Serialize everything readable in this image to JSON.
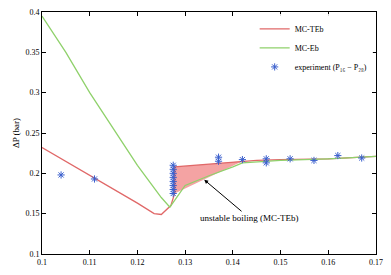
{
  "chart_data": {
    "type": "line",
    "ylabel": "ΔP (bar)",
    "xlim": [
      0.1,
      0.17
    ],
    "xticks": [
      0.1,
      0.11,
      0.12,
      0.13,
      0.14,
      0.15,
      0.16,
      0.17
    ],
    "ylim": [
      0.1,
      0.4
    ],
    "yticks": [
      0.1,
      0.15,
      0.2,
      0.25,
      0.3,
      0.35,
      0.4
    ],
    "grid": false,
    "legend": "upper right",
    "series": [
      {
        "name": "MC-TEb",
        "type": "line",
        "color": "#e06868",
        "line_style": "solid",
        "x": [
          0.1,
          0.105,
          0.11,
          0.115,
          0.12,
          0.1235,
          0.125,
          0.127,
          0.1278,
          0.1278,
          0.142,
          0.145,
          0.15,
          0.16,
          0.17
        ],
        "values": [
          0.232,
          0.215,
          0.198,
          0.18,
          0.163,
          0.15,
          0.149,
          0.16,
          0.175,
          0.208,
          0.215,
          0.216,
          0.217,
          0.218,
          0.221
        ]
      },
      {
        "name": "MC-Eb",
        "type": "line",
        "color": "#8fd16b",
        "line_style": "solid",
        "x": [
          0.1,
          0.105,
          0.11,
          0.115,
          0.12,
          0.125,
          0.1268,
          0.13,
          0.135,
          0.14,
          0.142,
          0.15,
          0.16,
          0.17
        ],
        "values": [
          0.395,
          0.35,
          0.3,
          0.255,
          0.21,
          0.17,
          0.158,
          0.185,
          0.197,
          0.208,
          0.213,
          0.216,
          0.218,
          0.221
        ]
      },
      {
        "name": "experiment (P₁₆ − P₂₈)",
        "type": "scatter",
        "color": "#3a5fcd",
        "marker": "asterisk",
        "x": [
          0.104,
          0.111,
          0.1275,
          0.1275,
          0.1275,
          0.1275,
          0.1275,
          0.1275,
          0.1275,
          0.1275,
          0.137,
          0.137,
          0.142,
          0.147,
          0.147,
          0.152,
          0.157,
          0.162,
          0.167
        ],
        "values": [
          0.198,
          0.193,
          0.175,
          0.18,
          0.185,
          0.19,
          0.195,
          0.2,
          0.205,
          0.21,
          0.215,
          0.22,
          0.217,
          0.213,
          0.218,
          0.218,
          0.216,
          0.222,
          0.219
        ]
      }
    ],
    "unstable_region": {
      "color": "#f4a3a3",
      "x": [
        0.1278,
        0.1278,
        0.142,
        0.1278
      ],
      "y": [
        0.175,
        0.208,
        0.215,
        0.175
      ]
    },
    "annotations": [
      {
        "text": "unstable boiling (MC-TEb)",
        "x": 0.134,
        "y": 0.192
      }
    ]
  }
}
